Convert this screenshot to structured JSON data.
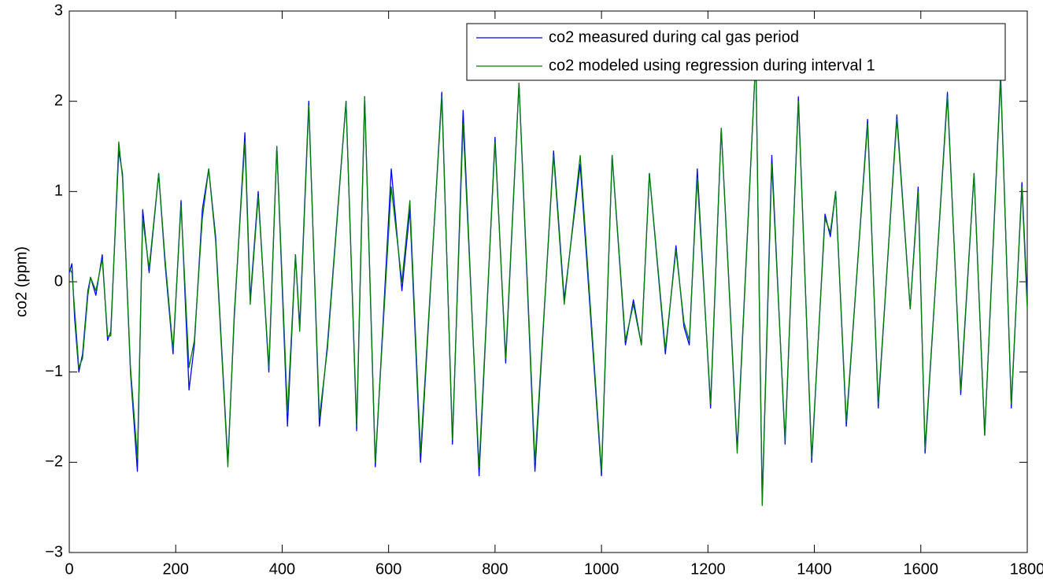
{
  "chart_data": {
    "type": "line",
    "ylabel": "co2 (ppm)",
    "x": [
      0,
      5,
      10,
      18,
      25,
      35,
      40,
      50,
      62,
      72,
      78,
      93,
      100,
      115,
      128,
      138,
      150,
      168,
      180,
      195,
      210,
      225,
      235,
      250,
      262,
      275,
      298,
      310,
      330,
      340,
      355,
      375,
      390,
      410,
      425,
      433,
      450,
      470,
      485,
      520,
      540,
      555,
      575,
      605,
      625,
      640,
      660,
      700,
      720,
      740,
      770,
      800,
      820,
      845,
      875,
      910,
      930,
      960,
      1000,
      1020,
      1045,
      1060,
      1075,
      1090,
      1120,
      1140,
      1155,
      1165,
      1180,
      1205,
      1225,
      1255,
      1290,
      1302,
      1320,
      1345,
      1370,
      1395,
      1420,
      1430,
      1440,
      1460,
      1500,
      1520,
      1555,
      1580,
      1595,
      1608,
      1650,
      1675,
      1700,
      1720,
      1750,
      1770,
      1790,
      1800
    ],
    "series": [
      {
        "name": "co2 measured during cal gas period",
        "color": "#0000ff",
        "values": [
          0.1,
          0.2,
          -0.4,
          -1.0,
          -0.8,
          -0.1,
          0.05,
          -0.15,
          0.3,
          -0.65,
          -0.55,
          1.45,
          1.2,
          -1.0,
          -2.1,
          0.8,
          0.1,
          1.2,
          0.2,
          -0.8,
          0.9,
          -1.2,
          -0.7,
          0.8,
          1.25,
          0.5,
          -2.0,
          -0.4,
          1.65,
          -0.2,
          1.0,
          -1.0,
          1.5,
          -1.6,
          0.3,
          -0.5,
          2.0,
          -1.6,
          -0.7,
          2.0,
          -1.65,
          2.05,
          -2.05,
          1.25,
          -0.1,
          0.8,
          -2.0,
          2.1,
          -1.8,
          1.9,
          -2.15,
          1.6,
          -0.9,
          2.2,
          -2.1,
          1.45,
          -0.2,
          1.3,
          -2.15,
          1.4,
          -0.7,
          -0.2,
          -0.7,
          1.2,
          -0.8,
          0.4,
          -0.5,
          -0.7,
          1.25,
          -1.4,
          1.7,
          -1.85,
          2.5,
          -2.45,
          1.4,
          -1.8,
          2.05,
          -2.0,
          0.75,
          0.5,
          1.0,
          -1.6,
          1.8,
          -1.4,
          1.85,
          -0.3,
          1.05,
          -1.9,
          2.1,
          -1.25,
          1.2,
          -1.7,
          2.3,
          -1.4,
          1.1,
          -0.2
        ]
      },
      {
        "name": "co2 modeled using regression during interval 1",
        "color": "#008000",
        "values": [
          0.15,
          0.1,
          -0.3,
          -0.95,
          -0.85,
          -0.15,
          0.05,
          -0.1,
          0.25,
          -0.6,
          -0.6,
          1.55,
          1.15,
          -0.95,
          -1.95,
          0.7,
          0.15,
          1.2,
          0.25,
          -0.75,
          0.85,
          -0.95,
          -0.65,
          0.7,
          1.25,
          0.45,
          -2.05,
          -0.35,
          1.55,
          -0.25,
          0.95,
          -0.95,
          1.5,
          -1.45,
          0.3,
          -0.55,
          1.95,
          -1.5,
          -0.75,
          2.0,
          -1.6,
          2.05,
          -2.0,
          1.05,
          0.0,
          0.9,
          -1.9,
          2.05,
          -1.75,
          1.75,
          -2.05,
          1.55,
          -0.85,
          2.2,
          -2.0,
          1.4,
          -0.25,
          1.4,
          -2.1,
          1.4,
          -0.65,
          -0.25,
          -0.7,
          1.2,
          -0.75,
          0.35,
          -0.45,
          -0.65,
          1.15,
          -1.35,
          1.7,
          -1.9,
          2.5,
          -2.48,
          1.3,
          -1.75,
          2.0,
          -1.95,
          0.7,
          0.55,
          1.0,
          -1.55,
          1.75,
          -1.35,
          1.8,
          -0.3,
          1.0,
          -1.85,
          2.05,
          -1.2,
          1.2,
          -1.7,
          2.25,
          -1.35,
          1.05,
          -0.3
        ]
      }
    ],
    "xlim": [
      0,
      1800
    ],
    "xticks": [
      0,
      200,
      400,
      600,
      800,
      1000,
      1200,
      1400,
      1600,
      1800
    ],
    "ylim": [
      -3,
      3
    ],
    "yticks": [
      {
        "value": -3,
        "label": "−3"
      },
      {
        "value": -2,
        "label": "−2"
      },
      {
        "value": -1,
        "label": "−1"
      },
      0,
      1,
      2,
      3
    ],
    "legend": "upper right",
    "grid": false
  }
}
